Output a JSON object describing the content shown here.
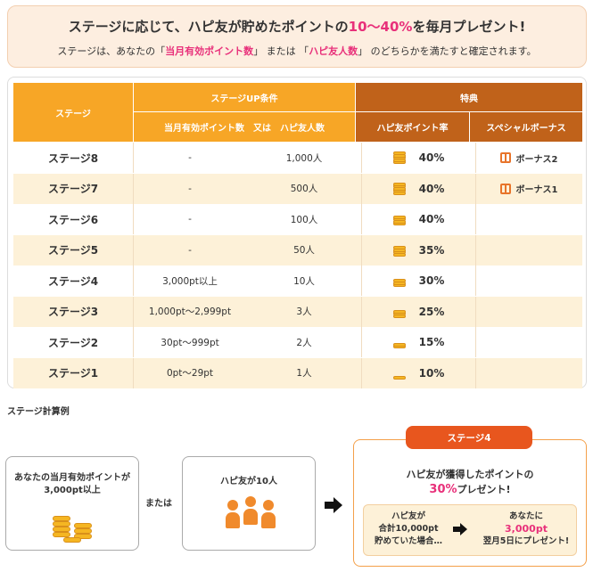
{
  "banner": {
    "title_pre": "ステージに応じて、ハピ友が貯めたポイントの",
    "title_pct": "10〜40%",
    "title_post": "を毎月プレゼント!",
    "sub_pre": "ステージは、あなたの「",
    "sub_points": "当月有効ポイント数",
    "sub_mid1": "」 または 「",
    "sub_friends": "ハピ友人数",
    "sub_post": "」 のどちらかを満たすと確定されます。"
  },
  "table": {
    "h_stage": "ステージ",
    "h_condition": "ステージUP条件",
    "h_condition_sub": "当月有効ポイント数　又は　ハピ友人数",
    "h_benefit": "特典",
    "h_rate": "ハピ友ポイント率",
    "h_bonus": "スペシャルボーナス",
    "rows": [
      {
        "stage": "ステージ8",
        "points": "-",
        "friends": "1,000人",
        "rate": "40%",
        "bonus": "ボーナス2"
      },
      {
        "stage": "ステージ7",
        "points": "-",
        "friends": "500人",
        "rate": "40%",
        "bonus": "ボーナス1"
      },
      {
        "stage": "ステージ6",
        "points": "-",
        "friends": "100人",
        "rate": "40%",
        "bonus": ""
      },
      {
        "stage": "ステージ5",
        "points": "-",
        "friends": "50人",
        "rate": "35%",
        "bonus": ""
      },
      {
        "stage": "ステージ4",
        "points": "3,000pt以上",
        "friends": "10人",
        "rate": "30%",
        "bonus": ""
      },
      {
        "stage": "ステージ3",
        "points": "1,000pt〜2,999pt",
        "friends": "3人",
        "rate": "25%",
        "bonus": ""
      },
      {
        "stage": "ステージ2",
        "points": "30pt〜999pt",
        "friends": "2人",
        "rate": "15%",
        "bonus": ""
      },
      {
        "stage": "ステージ1",
        "points": "0pt〜29pt",
        "friends": "1人",
        "rate": "10%",
        "bonus": ""
      }
    ]
  },
  "example": {
    "title": "ステージ計算例",
    "box1_line1": "あなたの当月有効ポイントが",
    "box1_line2": "3,000pt以上",
    "or": "または",
    "box2_line1": "ハピ友が10人",
    "stage_tab": "ステージ4",
    "result_line1": "ハピ友が獲得したポイントの",
    "result_pct": "30%",
    "result_post": "プレゼント!",
    "inner_left1": "ハピ友が",
    "inner_left2": "合計10,000pt",
    "inner_left3": "貯めていた場合…",
    "inner_right1": "あなたに",
    "inner_right2": "3,000pt",
    "inner_right3": "翌月5日にプレゼント!"
  },
  "colors": {
    "pink": "#e8307a",
    "orange": "#f7a626",
    "brown": "#c0621a",
    "tab_orange": "#e8561e"
  },
  "icons": [
    "coin-stack-icon",
    "gift-icon",
    "coins-icon",
    "people-icon",
    "right-arrow-icon"
  ]
}
